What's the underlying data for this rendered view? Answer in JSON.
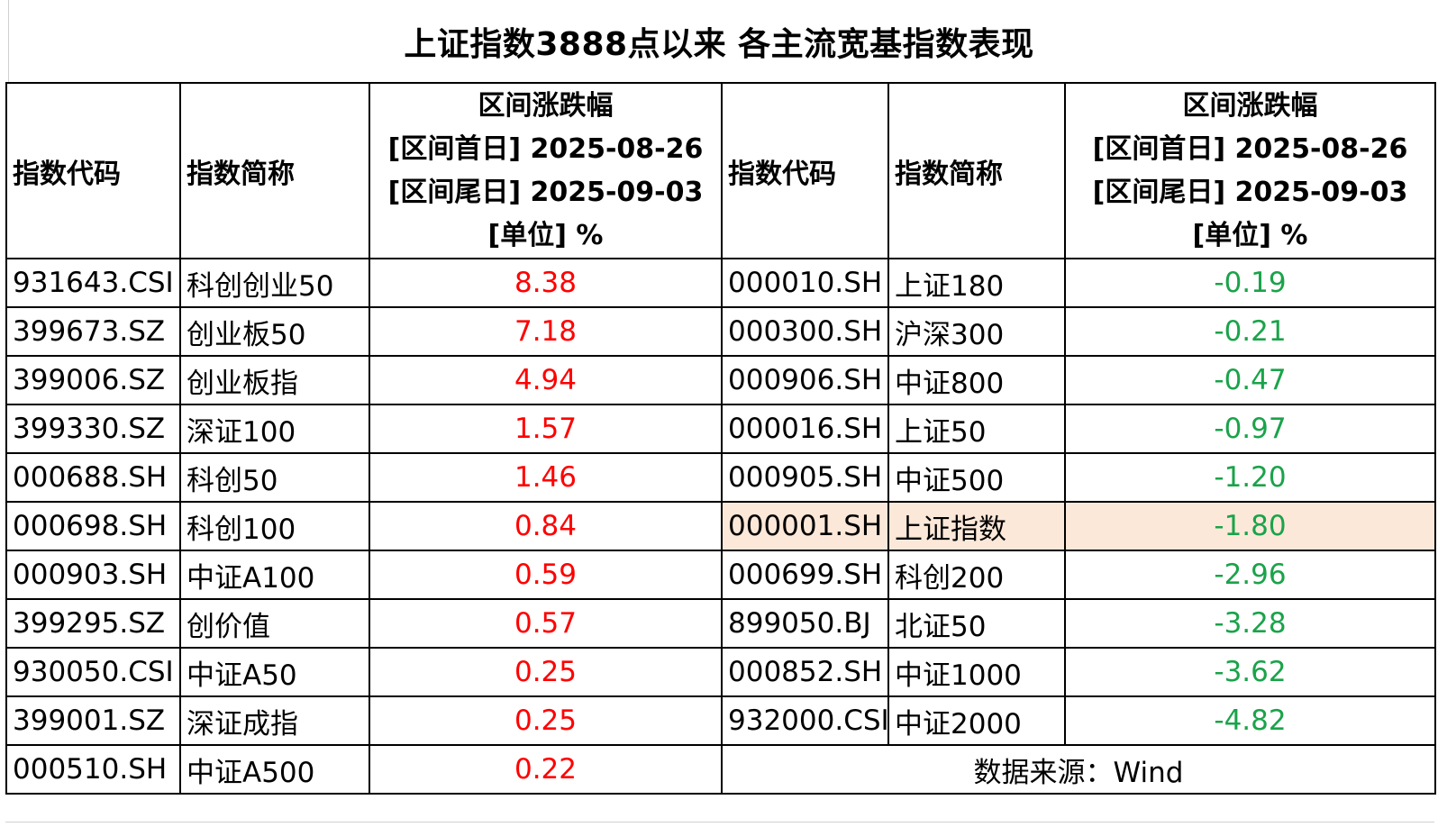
{
  "title": "上证指数3888点以来 各主流宽基指数表现",
  "colors": {
    "up": "#ff0000",
    "down": "#1aa34a",
    "highlight": "#fce8d9"
  },
  "headers": {
    "code": "指数代码",
    "name": "指数简称",
    "period_line1": "区间涨跌幅",
    "period_line2": "[区间首日] 2025-08-26",
    "period_line3": "[区间尾日] 2025-09-03",
    "period_line4": "[单位] %"
  },
  "left": [
    {
      "code": "931643.CSI",
      "name": "科创创业50",
      "value": "8.38"
    },
    {
      "code": "399673.SZ",
      "name": "创业板50",
      "value": "7.18"
    },
    {
      "code": "399006.SZ",
      "name": "创业板指",
      "value": "4.94"
    },
    {
      "code": "399330.SZ",
      "name": "深证100",
      "value": "1.57"
    },
    {
      "code": "000688.SH",
      "name": "科创50",
      "value": "1.46"
    },
    {
      "code": "000698.SH",
      "name": "科创100",
      "value": "0.84"
    },
    {
      "code": "000903.SH",
      "name": "中证A100",
      "value": "0.59"
    },
    {
      "code": "399295.SZ",
      "name": "创价值",
      "value": "0.57"
    },
    {
      "code": "930050.CSI",
      "name": "中证A50",
      "value": "0.25"
    },
    {
      "code": "399001.SZ",
      "name": "深证成指",
      "value": "0.25"
    },
    {
      "code": "000510.SH",
      "name": "中证A500",
      "value": "0.22"
    }
  ],
  "right": [
    {
      "code": "000010.SH",
      "name": "上证180",
      "value": "-0.19"
    },
    {
      "code": "000300.SH",
      "name": "沪深300",
      "value": "-0.21"
    },
    {
      "code": "000906.SH",
      "name": "中证800",
      "value": "-0.47"
    },
    {
      "code": "000016.SH",
      "name": "上证50",
      "value": "-0.97"
    },
    {
      "code": "000905.SH",
      "name": "中证500",
      "value": "-1.20"
    },
    {
      "code": "000001.SH",
      "name": "上证指数",
      "value": "-1.80"
    },
    {
      "code": "000699.SH",
      "name": "科创200",
      "value": "-2.96"
    },
    {
      "code": "899050.BJ",
      "name": "北证50",
      "value": "-3.28"
    },
    {
      "code": "000852.SH",
      "name": "中证1000",
      "value": "-3.62"
    },
    {
      "code": "932000.CSI",
      "name": "中证2000",
      "value": "-4.82"
    }
  ],
  "source": "数据来源：Wind",
  "chart_data": {
    "type": "table",
    "title": "上证指数3888点以来 各主流宽基指数表现",
    "columns": [
      "指数代码",
      "指数简称",
      "区间涨跌幅 [区间首日] 2025-08-26 [区间尾日] 2025-09-03 [单位] %"
    ],
    "rows": [
      [
        "931643.CSI",
        "科创创业50",
        8.38
      ],
      [
        "399673.SZ",
        "创业板50",
        7.18
      ],
      [
        "399006.SZ",
        "创业板指",
        4.94
      ],
      [
        "399330.SZ",
        "深证100",
        1.57
      ],
      [
        "000688.SH",
        "科创50",
        1.46
      ],
      [
        "000698.SH",
        "科创100",
        0.84
      ],
      [
        "000903.SH",
        "中证A100",
        0.59
      ],
      [
        "399295.SZ",
        "创价值",
        0.57
      ],
      [
        "930050.CSI",
        "中证A50",
        0.25
      ],
      [
        "399001.SZ",
        "深证成指",
        0.25
      ],
      [
        "000510.SH",
        "中证A500",
        0.22
      ],
      [
        "000010.SH",
        "上证180",
        -0.19
      ],
      [
        "000300.SH",
        "沪深300",
        -0.21
      ],
      [
        "000906.SH",
        "中证800",
        -0.47
      ],
      [
        "000016.SH",
        "上证50",
        -0.97
      ],
      [
        "000905.SH",
        "中证500",
        -1.2
      ],
      [
        "000001.SH",
        "上证指数",
        -1.8
      ],
      [
        "000699.SH",
        "科创200",
        -2.96
      ],
      [
        "899050.BJ",
        "北证50",
        -3.28
      ],
      [
        "000852.SH",
        "中证1000",
        -3.62
      ],
      [
        "932000.CSI",
        "中证2000",
        -4.82
      ]
    ]
  }
}
